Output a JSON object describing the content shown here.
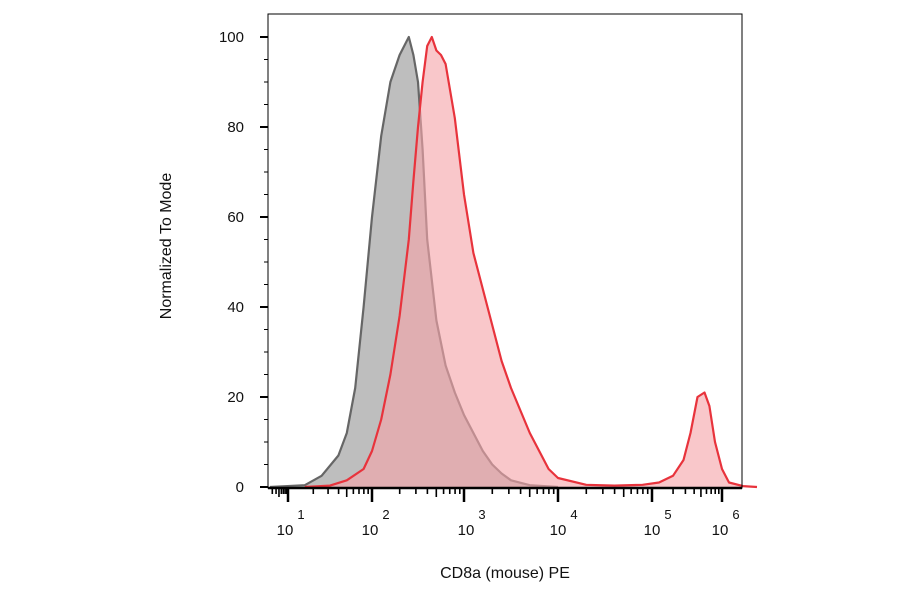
{
  "chart_data": {
    "type": "area",
    "xlabel": "CD8a (mouse) PE",
    "ylabel": "Normalized To Mode",
    "x_scale": "biexponential (log decades)",
    "x_ticks": [
      {
        "base": "10",
        "exp": "1"
      },
      {
        "base": "10",
        "exp": "2"
      },
      {
        "base": "10",
        "exp": "3"
      },
      {
        "base": "10",
        "exp": "4"
      },
      {
        "base": "10",
        "exp": "5"
      },
      {
        "base": "10",
        "exp": "6"
      }
    ],
    "y_ticks": [
      "0",
      "20",
      "40",
      "60",
      "80",
      "100"
    ],
    "ylim": [
      0,
      100
    ],
    "grid": false,
    "series": [
      {
        "color": "#666666",
        "fill": "#b3b3b3",
        "points": [
          [
            0.4,
            0
          ],
          [
            1.2,
            0.4
          ],
          [
            1.4,
            2.5
          ],
          [
            1.6,
            7
          ],
          [
            1.7,
            12
          ],
          [
            1.8,
            22
          ],
          [
            1.9,
            40
          ],
          [
            2.0,
            60
          ],
          [
            2.1,
            78
          ],
          [
            2.2,
            90
          ],
          [
            2.3,
            96
          ],
          [
            2.35,
            98
          ],
          [
            2.4,
            100
          ],
          [
            2.45,
            96
          ],
          [
            2.5,
            90
          ],
          [
            2.55,
            75
          ],
          [
            2.6,
            55
          ],
          [
            2.7,
            37
          ],
          [
            2.8,
            27
          ],
          [
            2.9,
            21
          ],
          [
            3.0,
            16
          ],
          [
            3.1,
            12
          ],
          [
            3.2,
            8
          ],
          [
            3.3,
            5
          ],
          [
            3.4,
            3
          ],
          [
            3.5,
            1.5
          ],
          [
            3.7,
            0.4
          ],
          [
            4.0,
            0
          ]
        ]
      },
      {
        "color": "#e8333c",
        "fill": "#f6a5aa",
        "points": [
          [
            1.2,
            0
          ],
          [
            1.5,
            0.3
          ],
          [
            1.7,
            1.5
          ],
          [
            1.9,
            4
          ],
          [
            2.0,
            8
          ],
          [
            2.1,
            15
          ],
          [
            2.2,
            25
          ],
          [
            2.3,
            38
          ],
          [
            2.4,
            55
          ],
          [
            2.45,
            68
          ],
          [
            2.5,
            80
          ],
          [
            2.55,
            90
          ],
          [
            2.6,
            98
          ],
          [
            2.65,
            100
          ],
          [
            2.7,
            97
          ],
          [
            2.75,
            96
          ],
          [
            2.8,
            94
          ],
          [
            2.9,
            82
          ],
          [
            3.0,
            65
          ],
          [
            3.1,
            52
          ],
          [
            3.2,
            44
          ],
          [
            3.3,
            36
          ],
          [
            3.4,
            28
          ],
          [
            3.5,
            22
          ],
          [
            3.6,
            17
          ],
          [
            3.7,
            12
          ],
          [
            3.8,
            8
          ],
          [
            3.9,
            4
          ],
          [
            4.0,
            2
          ],
          [
            4.3,
            0.5
          ],
          [
            4.6,
            0.3
          ],
          [
            4.9,
            0.5
          ],
          [
            5.1,
            1
          ],
          [
            5.3,
            2.5
          ],
          [
            5.45,
            6
          ],
          [
            5.55,
            12
          ],
          [
            5.65,
            20
          ],
          [
            5.75,
            21
          ],
          [
            5.82,
            18
          ],
          [
            5.9,
            10
          ],
          [
            6.0,
            4
          ],
          [
            6.1,
            1
          ],
          [
            6.3,
            0.2
          ],
          [
            6.5,
            0
          ]
        ]
      }
    ]
  }
}
